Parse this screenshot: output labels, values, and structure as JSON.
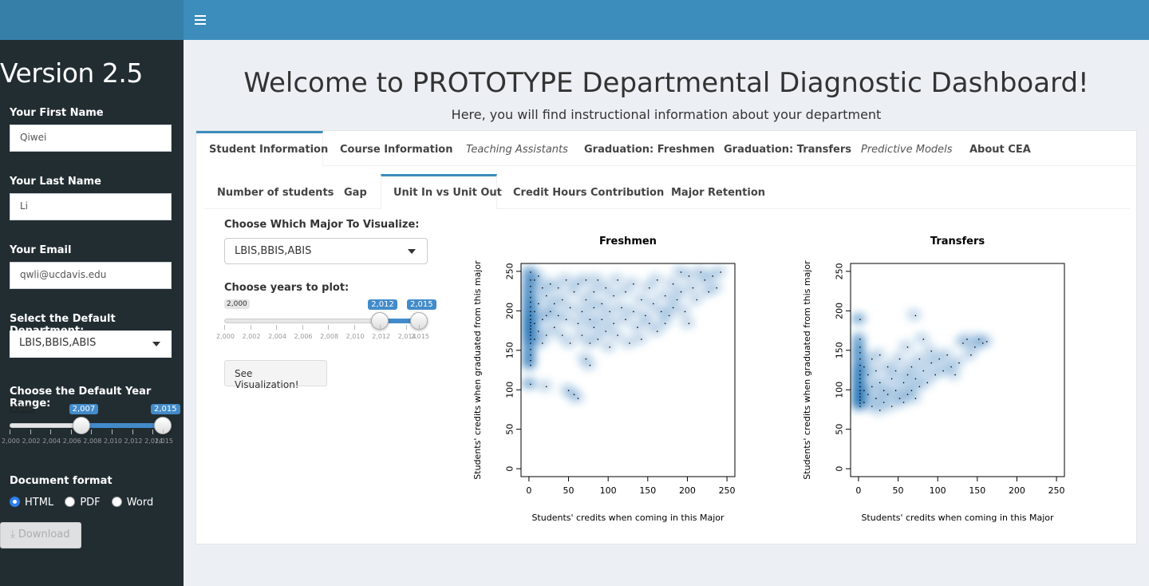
{
  "header": {
    "menu_icon": "hamburger-icon"
  },
  "sidebar": {
    "version": "Version 2.5",
    "first_name": {
      "label": "Your First Name",
      "value": "Qiwei"
    },
    "last_name": {
      "label": "Your Last Name",
      "value": "Li"
    },
    "email": {
      "label": "Your Email",
      "value": "qwli@ucdavis.edu"
    },
    "department": {
      "label": "Select the Default Department:",
      "value": "LBIS,BBIS,ABIS"
    },
    "year_range": {
      "label": "Choose the Default Year Range:",
      "min": 2000,
      "max": 2015,
      "from": 2007,
      "to": 2015,
      "min_label": "2,000",
      "from_label": "2,007",
      "to_label": "2,015",
      "ticks": [
        "2,000",
        "2,002",
        "2,004",
        "2,006",
        "2,008",
        "2,010",
        "2,012",
        "2,014",
        "2,015"
      ]
    },
    "doc_format": {
      "label": "Document format",
      "options": [
        {
          "label": "HTML",
          "selected": true
        },
        {
          "label": "PDF",
          "selected": false
        },
        {
          "label": "Word",
          "selected": false
        }
      ]
    },
    "download_label": "Download"
  },
  "main": {
    "title": "Welcome to PROTOTYPE Departmental Diagnostic Dashboard!",
    "subtitle": "Here, you will find instructional information about your department",
    "tabs": [
      {
        "label": "Student Information"
      },
      {
        "label": "Course Information"
      },
      {
        "label": "Teaching Assistants"
      },
      {
        "label": "Graduation: Freshmen"
      },
      {
        "label": "Graduation: Transfers"
      },
      {
        "label": "Predictive Models"
      },
      {
        "label": "About CEA"
      }
    ],
    "subtabs": [
      {
        "label": "Number of students"
      },
      {
        "label": "Gap"
      },
      {
        "label": "Unit In vs Unit Out"
      },
      {
        "label": "Credit Hours Contribution"
      },
      {
        "label": "Major Retention"
      }
    ],
    "major": {
      "label": "Choose Which Major To Visualize:",
      "value": "LBIS,BBIS,ABIS"
    },
    "years": {
      "label": "Choose years to plot:",
      "min": 2000,
      "max": 2015,
      "from": 2012,
      "to": 2015,
      "min_label": "2,000",
      "from_label": "2,012",
      "to_label": "2,015",
      "ticks": [
        "2,000",
        "2,002",
        "2,004",
        "2,006",
        "2,008",
        "2,010",
        "2,012",
        "2,014",
        "2,015"
      ]
    },
    "see_button": "See Visualization!"
  },
  "chart_data": [
    {
      "type": "scatter",
      "title": "Freshmen",
      "xlabel": "Students' credits when coming in this Major",
      "ylabel": "Students' credits when graduated from this major",
      "xlim": [
        -10,
        260
      ],
      "ylim": [
        -10,
        260
      ],
      "xticks": [
        0,
        50,
        100,
        150,
        200,
        250
      ],
      "yticks": [
        0,
        50,
        100,
        150,
        200,
        250
      ],
      "style": "smoothed density",
      "color": "#2171b5",
      "points": [
        [
          0,
          250
        ],
        [
          0,
          240
        ],
        [
          0,
          232
        ],
        [
          0,
          225
        ],
        [
          0,
          218
        ],
        [
          0,
          212
        ],
        [
          0,
          206
        ],
        [
          0,
          200
        ],
        [
          0,
          195
        ],
        [
          0,
          190
        ],
        [
          0,
          186
        ],
        [
          0,
          182
        ],
        [
          0,
          178
        ],
        [
          0,
          174
        ],
        [
          0,
          170
        ],
        [
          0,
          165
        ],
        [
          0,
          160
        ],
        [
          0,
          152
        ],
        [
          0,
          145
        ],
        [
          0,
          138
        ],
        [
          0,
          132
        ],
        [
          0,
          108
        ],
        [
          5,
          240
        ],
        [
          5,
          200
        ],
        [
          5,
          185
        ],
        [
          5,
          165
        ],
        [
          10,
          245
        ],
        [
          10,
          210
        ],
        [
          10,
          175
        ],
        [
          15,
          230
        ],
        [
          15,
          190
        ],
        [
          15,
          160
        ],
        [
          20,
          220
        ],
        [
          20,
          195
        ],
        [
          20,
          170
        ],
        [
          20,
          105
        ],
        [
          25,
          235
        ],
        [
          25,
          200
        ],
        [
          30,
          180
        ],
        [
          30,
          210
        ],
        [
          35,
          195
        ],
        [
          35,
          230
        ],
        [
          40,
          170
        ],
        [
          40,
          215
        ],
        [
          45,
          240
        ],
        [
          45,
          190
        ],
        [
          48,
          100
        ],
        [
          50,
          205
        ],
        [
          50,
          160
        ],
        [
          55,
          225
        ],
        [
          55,
          95
        ],
        [
          60,
          185
        ],
        [
          60,
          235
        ],
        [
          60,
          90
        ],
        [
          65,
          200
        ],
        [
          65,
          170
        ],
        [
          70,
          240
        ],
        [
          70,
          215
        ],
        [
          70,
          140
        ],
        [
          75,
          190
        ],
        [
          75,
          160
        ],
        [
          75,
          132
        ],
        [
          80,
          225
        ],
        [
          80,
          205
        ],
        [
          80,
          180
        ],
        [
          85,
          240
        ],
        [
          85,
          165
        ],
        [
          90,
          210
        ],
        [
          90,
          190
        ],
        [
          95,
          230
        ],
        [
          95,
          175
        ],
        [
          100,
          200
        ],
        [
          100,
          155
        ],
        [
          105,
          220
        ],
        [
          105,
          185
        ],
        [
          110,
          240
        ],
        [
          110,
          170
        ],
        [
          115,
          205
        ],
        [
          120,
          225
        ],
        [
          120,
          190
        ],
        [
          125,
          160
        ],
        [
          130,
          235
        ],
        [
          130,
          200
        ],
        [
          135,
          180
        ],
        [
          140,
          215
        ],
        [
          140,
          165
        ],
        [
          145,
          195
        ],
        [
          150,
          230
        ],
        [
          150,
          185
        ],
        [
          155,
          210
        ],
        [
          160,
          175
        ],
        [
          160,
          240
        ],
        [
          165,
          200
        ],
        [
          170,
          220
        ],
        [
          170,
          185
        ],
        [
          175,
          195
        ],
        [
          180,
          235
        ],
        [
          180,
          205
        ],
        [
          185,
          215
        ],
        [
          190,
          250
        ],
        [
          190,
          225
        ],
        [
          195,
          200
        ],
        [
          200,
          245
        ],
        [
          200,
          185
        ],
        [
          205,
          230
        ],
        [
          210,
          215
        ],
        [
          215,
          250
        ],
        [
          220,
          240
        ],
        [
          225,
          225
        ],
        [
          230,
          245
        ],
        [
          235,
          230
        ],
        [
          240,
          250
        ]
      ]
    },
    {
      "type": "scatter",
      "title": "Transfers",
      "xlabel": "Students' credits when coming in this Major",
      "ylabel": "Students' credits when graduated from this major",
      "xlim": [
        -10,
        260
      ],
      "ylim": [
        -10,
        260
      ],
      "xticks": [
        0,
        50,
        100,
        150,
        200,
        250
      ],
      "yticks": [
        0,
        50,
        100,
        150,
        200,
        250
      ],
      "style": "smoothed density",
      "color": "#2171b5",
      "points": [
        [
          0,
          190
        ],
        [
          0,
          165
        ],
        [
          0,
          155
        ],
        [
          0,
          148
        ],
        [
          0,
          140
        ],
        [
          0,
          132
        ],
        [
          0,
          125
        ],
        [
          0,
          120
        ],
        [
          0,
          115
        ],
        [
          0,
          110
        ],
        [
          0,
          105
        ],
        [
          0,
          100
        ],
        [
          0,
          96
        ],
        [
          0,
          92
        ],
        [
          0,
          88
        ],
        [
          0,
          84
        ],
        [
          0,
          80
        ],
        [
          5,
          130
        ],
        [
          5,
          100
        ],
        [
          5,
          85
        ],
        [
          10,
          120
        ],
        [
          10,
          95
        ],
        [
          15,
          140
        ],
        [
          15,
          105
        ],
        [
          15,
          80
        ],
        [
          20,
          125
        ],
        [
          20,
          90
        ],
        [
          25,
          145
        ],
        [
          25,
          110
        ],
        [
          25,
          75
        ],
        [
          30,
          100
        ],
        [
          30,
          85
        ],
        [
          35,
          130
        ],
        [
          35,
          95
        ],
        [
          40,
          115
        ],
        [
          40,
          80
        ],
        [
          45,
          125
        ],
        [
          45,
          100
        ],
        [
          50,
          140
        ],
        [
          50,
          90
        ],
        [
          55,
          110
        ],
        [
          55,
          85
        ],
        [
          60,
          155
        ],
        [
          60,
          120
        ],
        [
          60,
          95
        ],
        [
          65,
          130
        ],
        [
          65,
          100
        ],
        [
          70,
          195
        ],
        [
          70,
          115
        ],
        [
          70,
          90
        ],
        [
          75,
          140
        ],
        [
          75,
          105
        ],
        [
          80,
          165
        ],
        [
          80,
          125
        ],
        [
          85,
          110
        ],
        [
          90,
          135
        ],
        [
          90,
          150
        ],
        [
          95,
          120
        ],
        [
          100,
          140
        ],
        [
          105,
          125
        ],
        [
          110,
          145
        ],
        [
          115,
          130
        ],
        [
          120,
          120
        ],
        [
          125,
          135
        ],
        [
          130,
          160
        ],
        [
          135,
          165
        ],
        [
          140,
          145
        ],
        [
          145,
          155
        ],
        [
          150,
          165
        ],
        [
          155,
          160
        ],
        [
          160,
          162
        ]
      ]
    }
  ]
}
